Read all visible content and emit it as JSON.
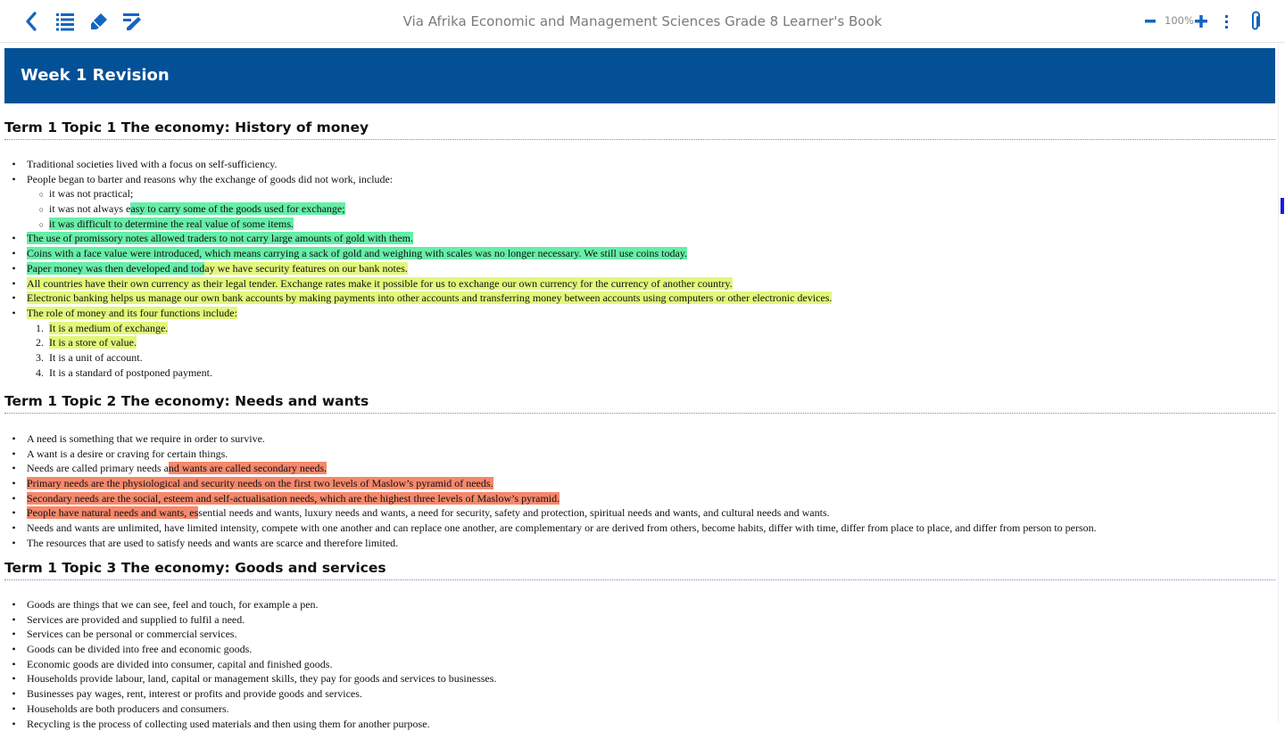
{
  "app": {
    "title": "Via Afrika Economic and Management Sciences Grade 8 Learner's Book",
    "zoom_level": "100%",
    "accent_color": "#1565c0",
    "icons": [
      "back-icon",
      "table-of-contents-icon",
      "highlighter-icon",
      "notes-icon",
      "zoom-out-icon",
      "zoom-in-icon",
      "more-options-icon",
      "attachment-icon"
    ]
  },
  "banner": {
    "title": "Week 1 Revision",
    "color": "#045096"
  },
  "highlight_colors": {
    "green": "#66eea8",
    "yellow": "#e2f77a",
    "salmon": "#f5886c"
  },
  "sections": [
    {
      "heading": "Term 1 Topic 1 The economy: History of money",
      "items": [
        {
          "type": "bullet",
          "segments": [
            {
              "text": "Traditional societies lived with a focus on self-sufficiency."
            }
          ]
        },
        {
          "type": "bullet",
          "segments": [
            {
              "text": "People began to barter and reasons why the exchange of goods did not work, include:"
            }
          ]
        },
        {
          "type": "sub",
          "segments": [
            {
              "text": "it was not practical;"
            }
          ]
        },
        {
          "type": "sub",
          "segments": [
            {
              "text": "it was not always e"
            },
            {
              "text": "asy to carry some of the goods used for exchange;",
              "hl": "green"
            }
          ]
        },
        {
          "type": "sub",
          "segments": [
            {
              "text": "it was difficult to determine the real value of some items.",
              "hl": "green"
            }
          ]
        },
        {
          "type": "bullet",
          "segments": [
            {
              "text": "The use of promissory notes allowed traders to not carry large amounts of gold with them.",
              "hl": "green"
            }
          ]
        },
        {
          "type": "bullet",
          "segments": [
            {
              "text": "Coins with a face value were introduced, which means carrying a sack of gold and weighing with scales was no longer necessary. We still use coins today.",
              "hl": "green"
            }
          ]
        },
        {
          "type": "bullet",
          "segments": [
            {
              "text": "Paper money was then developed and tod",
              "hl": "green"
            },
            {
              "text": "ay we have security features on our bank notes.",
              "hl": "yellow"
            }
          ]
        },
        {
          "type": "bullet",
          "segments": [
            {
              "text": "All countries have their own currency as their legal tender. Exchange rates make it possible for us to exchange our own currency for the currency of another country.",
              "hl": "yellow"
            }
          ]
        },
        {
          "type": "bullet",
          "segments": [
            {
              "text": "Electronic banking helps us manage our own bank accounts by making payments into other accounts and transferring money between accounts using computers or other electronic devices.",
              "hl": "yellow"
            }
          ]
        },
        {
          "type": "bullet",
          "segments": [
            {
              "text": "The role of money and its four functions include:",
              "hl": "yellow"
            }
          ]
        },
        {
          "type": "num",
          "marker": "1.",
          "segments": [
            {
              "text": "It is a medium of exchange.",
              "hl": "yellow"
            }
          ]
        },
        {
          "type": "num",
          "marker": "2.",
          "segments": [
            {
              "text": "It is a store of value.",
              "hl": "yellow"
            }
          ]
        },
        {
          "type": "num",
          "marker": "3.",
          "segments": [
            {
              "text": "It is a unit of account."
            }
          ]
        },
        {
          "type": "num",
          "marker": "4.",
          "segments": [
            {
              "text": "It is a standard of postponed payment."
            }
          ]
        }
      ]
    },
    {
      "heading": "Term 1 Topic 2 The economy: Needs and wants",
      "items": [
        {
          "type": "bullet",
          "segments": [
            {
              "text": "A need is something that we require in order to survive."
            }
          ]
        },
        {
          "type": "bullet",
          "segments": [
            {
              "text": "A want is a desire or craving for certain things."
            }
          ]
        },
        {
          "type": "bullet",
          "segments": [
            {
              "text": "Needs are called primary needs a"
            },
            {
              "text": "nd wants are called secondary needs.",
              "hl": "salmon"
            }
          ]
        },
        {
          "type": "bullet",
          "segments": [
            {
              "text": "Primary needs are the physiological and security needs on the first two levels of Maslow’s pyramid of needs.",
              "hl": "salmon"
            }
          ]
        },
        {
          "type": "bullet",
          "segments": [
            {
              "text": "Secondary needs are the social, esteem and self-actualisation needs, which are the highest three levels of Maslow’s pyramid.",
              "hl": "salmon"
            }
          ]
        },
        {
          "type": "bullet",
          "segments": [
            {
              "text": "People have natural needs and wants, es",
              "hl": "salmon"
            },
            {
              "text": "sential needs and wants, luxury needs and wants, a need for security, safety and protection, spiritual needs and wants, and cultural needs and wants."
            }
          ]
        },
        {
          "type": "bullet",
          "segments": [
            {
              "text": "Needs and wants are unlimited, have limited intensity, compete with one another and can replace one another, are complementary or are derived from others, become habits, differ with time, differ from place to place, and differ from person to person."
            }
          ]
        },
        {
          "type": "bullet",
          "segments": [
            {
              "text": "The resources that are used to satisfy needs and wants are scarce and therefore limited."
            }
          ]
        }
      ]
    },
    {
      "heading": "Term 1 Topic 3 The economy: Goods and services",
      "items": [
        {
          "type": "bullet",
          "segments": [
            {
              "text": "Goods are things that we can see, feel and touch, for example a pen."
            }
          ]
        },
        {
          "type": "bullet",
          "segments": [
            {
              "text": "Services are provided and supplied to fulfil a need."
            }
          ]
        },
        {
          "type": "bullet",
          "segments": [
            {
              "text": "Services can be personal or commercial services."
            }
          ]
        },
        {
          "type": "bullet",
          "segments": [
            {
              "text": "Goods can be divided into free and economic goods."
            }
          ]
        },
        {
          "type": "bullet",
          "segments": [
            {
              "text": "Economic goods are divided into consumer, capital and finished goods."
            }
          ]
        },
        {
          "type": "bullet",
          "segments": [
            {
              "text": "Households provide labour, land, capital or management skills, they pay for goods and services to businesses."
            }
          ]
        },
        {
          "type": "bullet",
          "segments": [
            {
              "text": "Businesses pay wages, rent, interest or profits and provide goods and services."
            }
          ]
        },
        {
          "type": "bullet",
          "segments": [
            {
              "text": "Households are both producers and consumers."
            }
          ]
        },
        {
          "type": "bullet",
          "segments": [
            {
              "text": "Recycling is the process of collecting used materials and then using them for another purpose."
            }
          ]
        }
      ]
    }
  ]
}
